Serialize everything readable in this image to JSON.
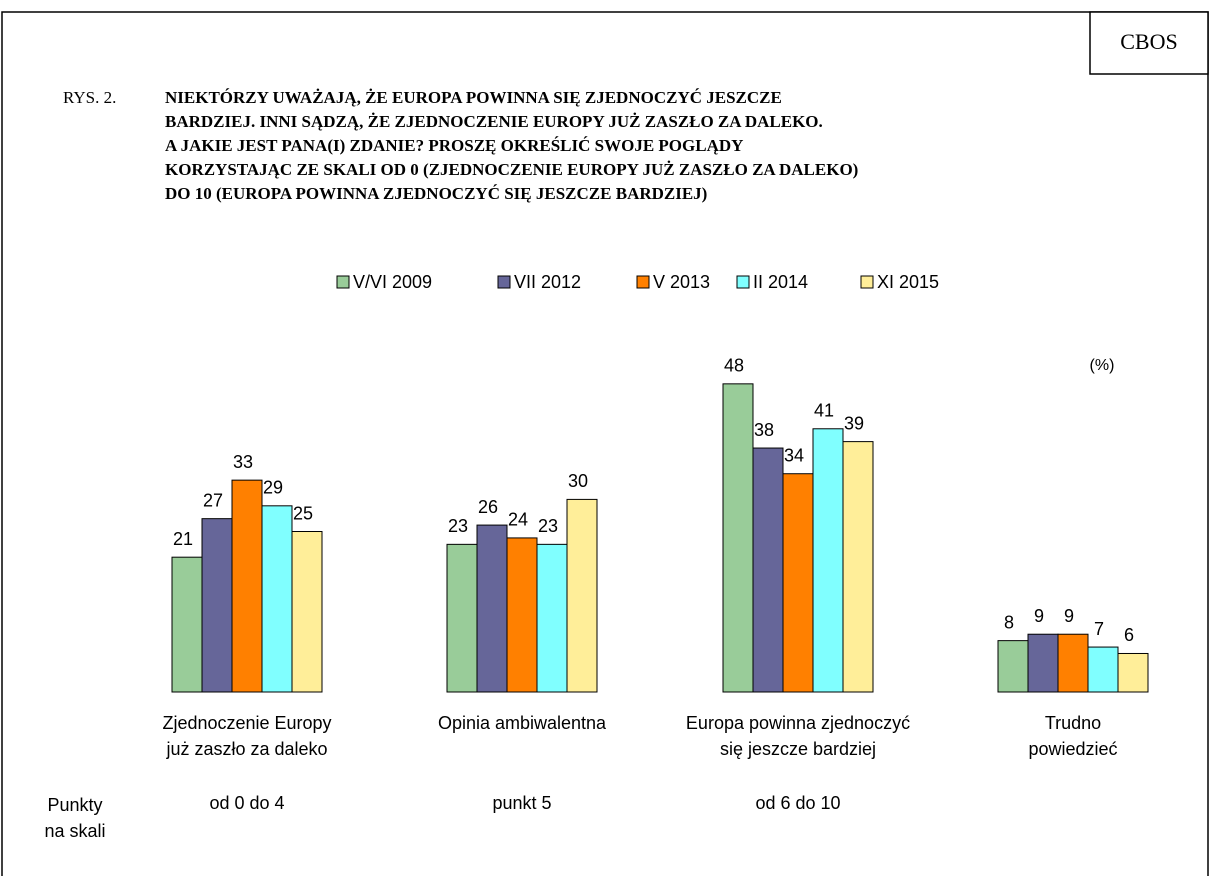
{
  "chart_data": {
    "type": "bar",
    "source": "CBOS",
    "figure_label": "RYS. 2.",
    "title": [
      "NIEKTÓRZY UWAŻAJĄ, ŻE EUROPA POWINNA SIĘ ZJEDNOCZYĆ JESZCZE",
      "BARDZIEJ. INNI SĄDZĄ, ŻE ZJEDNOCZENIE EUROPY JUŻ ZASZŁO ZA DALEKO.",
      "A JAKIE JEST PANA(I) ZDANIE? PROSZĘ OKREŚLIĆ SWOJE POGLĄDY",
      "KORZYSTAJĄC ZE SKALI OD 0 (ZJEDNOCZENIE EUROPY JUŻ ZASZŁO ZA DALEKO)",
      "DO 10  (EUROPA POWINNA ZJEDNOCZYĆ SIĘ JESZCZE BARDZIEJ)"
    ],
    "unit_label": "(%)",
    "categories": [
      "Zjednoczenie Europy\njuż zaszło za daleko",
      "Opinia ambiwalentna",
      "Europa powinna zjednoczyć\nsię jeszcze bardziej",
      "Trudno\npowiedzieć"
    ],
    "scale_title": "Punkty\nna skali",
    "scale_points": [
      "od 0 do 4",
      "punkt 5",
      "od 6 do 10",
      null
    ],
    "series": [
      {
        "name": "V/VI 2009",
        "color": "#99cc99",
        "values": [
          21,
          23,
          48,
          8
        ]
      },
      {
        "name": "VII 2012",
        "color": "#666699",
        "values": [
          27,
          26,
          38,
          9
        ]
      },
      {
        "name": "V 2013",
        "color": "#ff8000",
        "values": [
          33,
          24,
          34,
          9
        ]
      },
      {
        "name": "II 2014",
        "color": "#80ffff",
        "values": [
          29,
          23,
          41,
          7
        ]
      },
      {
        "name": "XI 2015",
        "color": "#ffee99",
        "values": [
          25,
          30,
          39,
          6
        ]
      }
    ]
  }
}
